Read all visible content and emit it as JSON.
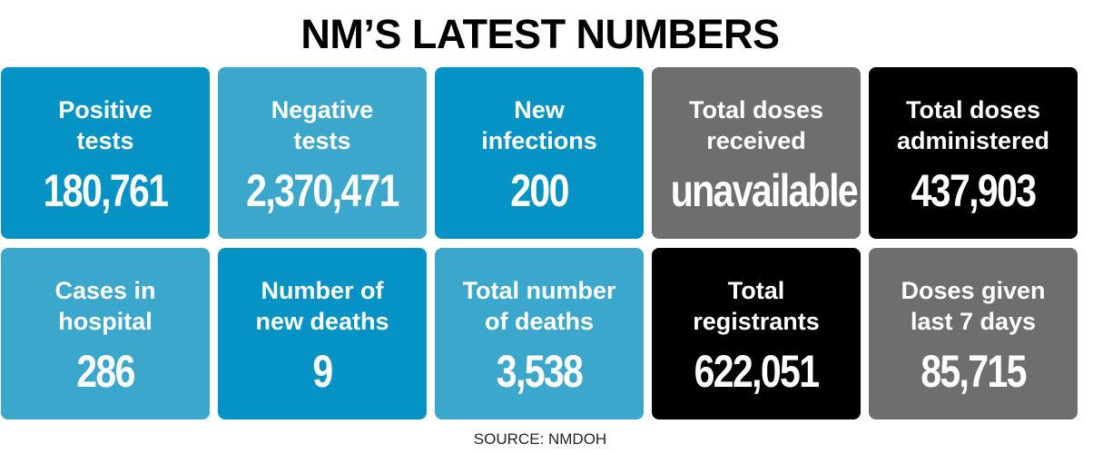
{
  "title": "NM’S LATEST NUMBERS",
  "colors": {
    "dark_blue": "#0593c6",
    "light_blue": "#3ba7cd",
    "gray": "#6e6e6e",
    "black": "#000000"
  },
  "tiles": [
    {
      "label": "Positive\ntests",
      "value": "180,761",
      "color": "#0593c6"
    },
    {
      "label": "Negative\ntests",
      "value": "2,370,471",
      "color": "#3ba7cd"
    },
    {
      "label": "New\ninfections",
      "value": "200",
      "color": "#0593c6"
    },
    {
      "label": "Total doses\nreceived",
      "value": "unavailable",
      "color": "#6e6e6e"
    },
    {
      "label": "Total doses\nadministered",
      "value": "437,903",
      "color": "#000000"
    },
    {
      "label": "Cases in\nhospital",
      "value": "286",
      "color": "#3ba7cd"
    },
    {
      "label": "Number of\nnew deaths",
      "value": "9",
      "color": "#0593c6"
    },
    {
      "label": "Total number\nof deaths",
      "value": "3,538",
      "color": "#3ba7cd"
    },
    {
      "label": "Total\nregistrants",
      "value": "622,051",
      "color": "#000000"
    },
    {
      "label": "Doses given\nlast 7 days",
      "value": "85,715",
      "color": "#6e6e6e"
    }
  ],
  "source": "SOURCE: NMDOH"
}
